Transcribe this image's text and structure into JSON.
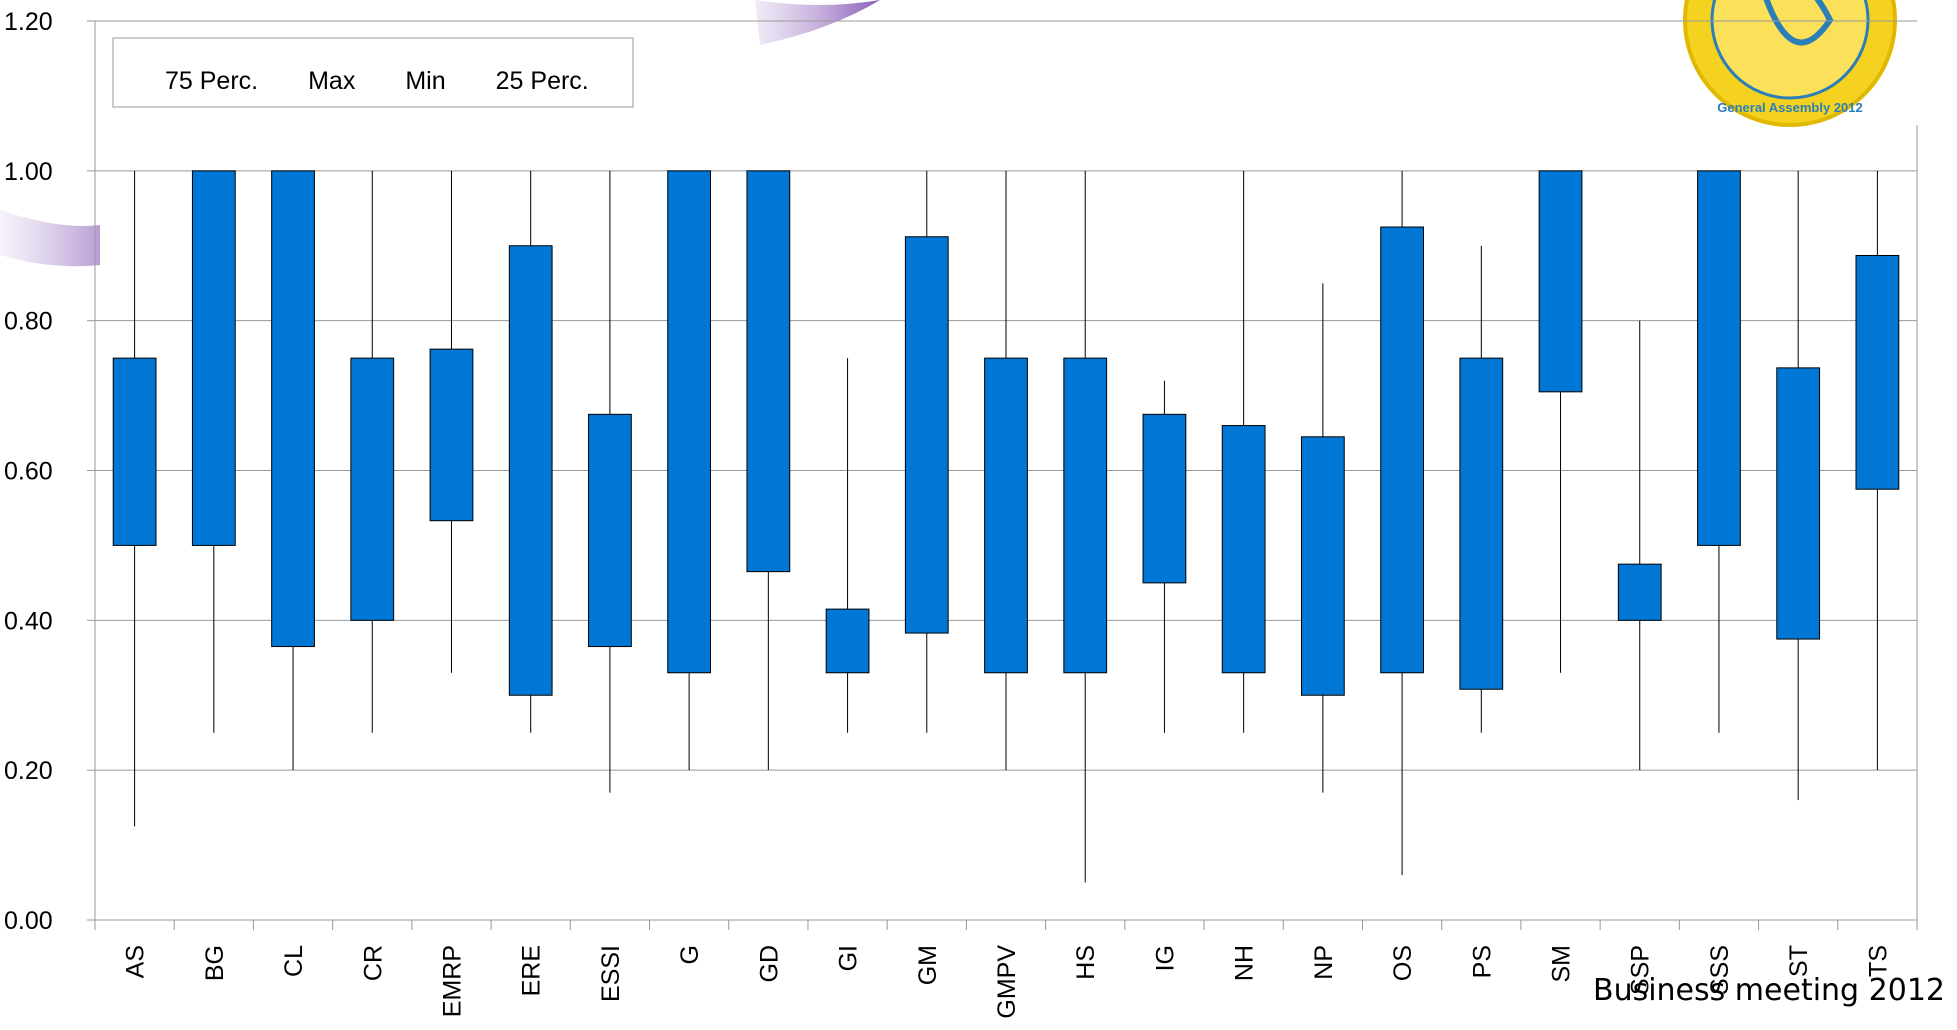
{
  "chart_data": {
    "type": "box",
    "categories": [
      "AS",
      "BG",
      "CL",
      "CR",
      "EMRP",
      "ERE",
      "ESSI",
      "G",
      "GD",
      "GI",
      "GM",
      "GMPV",
      "HS",
      "IG",
      "NH",
      "NP",
      "OS",
      "PS",
      "SM",
      "SSP",
      "SSS",
      "ST",
      "TS"
    ],
    "series": [
      {
        "name": "75 Perc.",
        "color": "#0077d4",
        "values": [
          0.75,
          1.0,
          1.0,
          0.75,
          0.762,
          0.9,
          0.675,
          1.0,
          1.0,
          0.415,
          0.912,
          0.75,
          0.75,
          0.675,
          0.66,
          0.645,
          0.925,
          0.75,
          1.0,
          0.475,
          1.0,
          0.737,
          0.887
        ]
      },
      {
        "name": "Max",
        "color": "#000000",
        "values": [
          1.0,
          1.0,
          1.0,
          1.0,
          1.0,
          1.0,
          1.0,
          1.0,
          1.0,
          0.75,
          1.0,
          1.0,
          1.0,
          0.72,
          1.0,
          0.85,
          1.0,
          0.9,
          1.0,
          0.8,
          1.0,
          1.0,
          1.0
        ]
      },
      {
        "name": "Min",
        "color": "#000000",
        "values": [
          0.125,
          0.25,
          0.2,
          0.25,
          0.33,
          0.25,
          0.17,
          0.2,
          0.2,
          0.25,
          0.25,
          0.2,
          0.05,
          0.25,
          0.25,
          0.17,
          0.06,
          0.25,
          0.33,
          0.2,
          0.25,
          0.16,
          0.2
        ]
      },
      {
        "name": "25 Perc.",
        "color": "#0077d4",
        "values": [
          0.5,
          0.5,
          0.365,
          0.4,
          0.533,
          0.3,
          0.365,
          0.33,
          0.465,
          0.33,
          0.383,
          0.33,
          0.33,
          0.45,
          0.33,
          0.3,
          0.33,
          0.308,
          0.705,
          0.4,
          0.5,
          0.375,
          0.575
        ]
      }
    ],
    "ylim": [
      0,
      1.2
    ],
    "yticks": [
      {
        "value": 0,
        "label": "0.00"
      },
      {
        "value": 0.2,
        "label": "0.20"
      },
      {
        "value": 0.4,
        "label": "0.40"
      },
      {
        "value": 0.6,
        "label": "0.60"
      },
      {
        "value": 0.8,
        "label": "0.80"
      },
      {
        "value": 1,
        "label": "1.00"
      },
      {
        "value": 1.2,
        "label": "1.20"
      }
    ],
    "grid": true
  },
  "footer": "Business meeting 2012",
  "logo_text": "General Assembly 2012"
}
